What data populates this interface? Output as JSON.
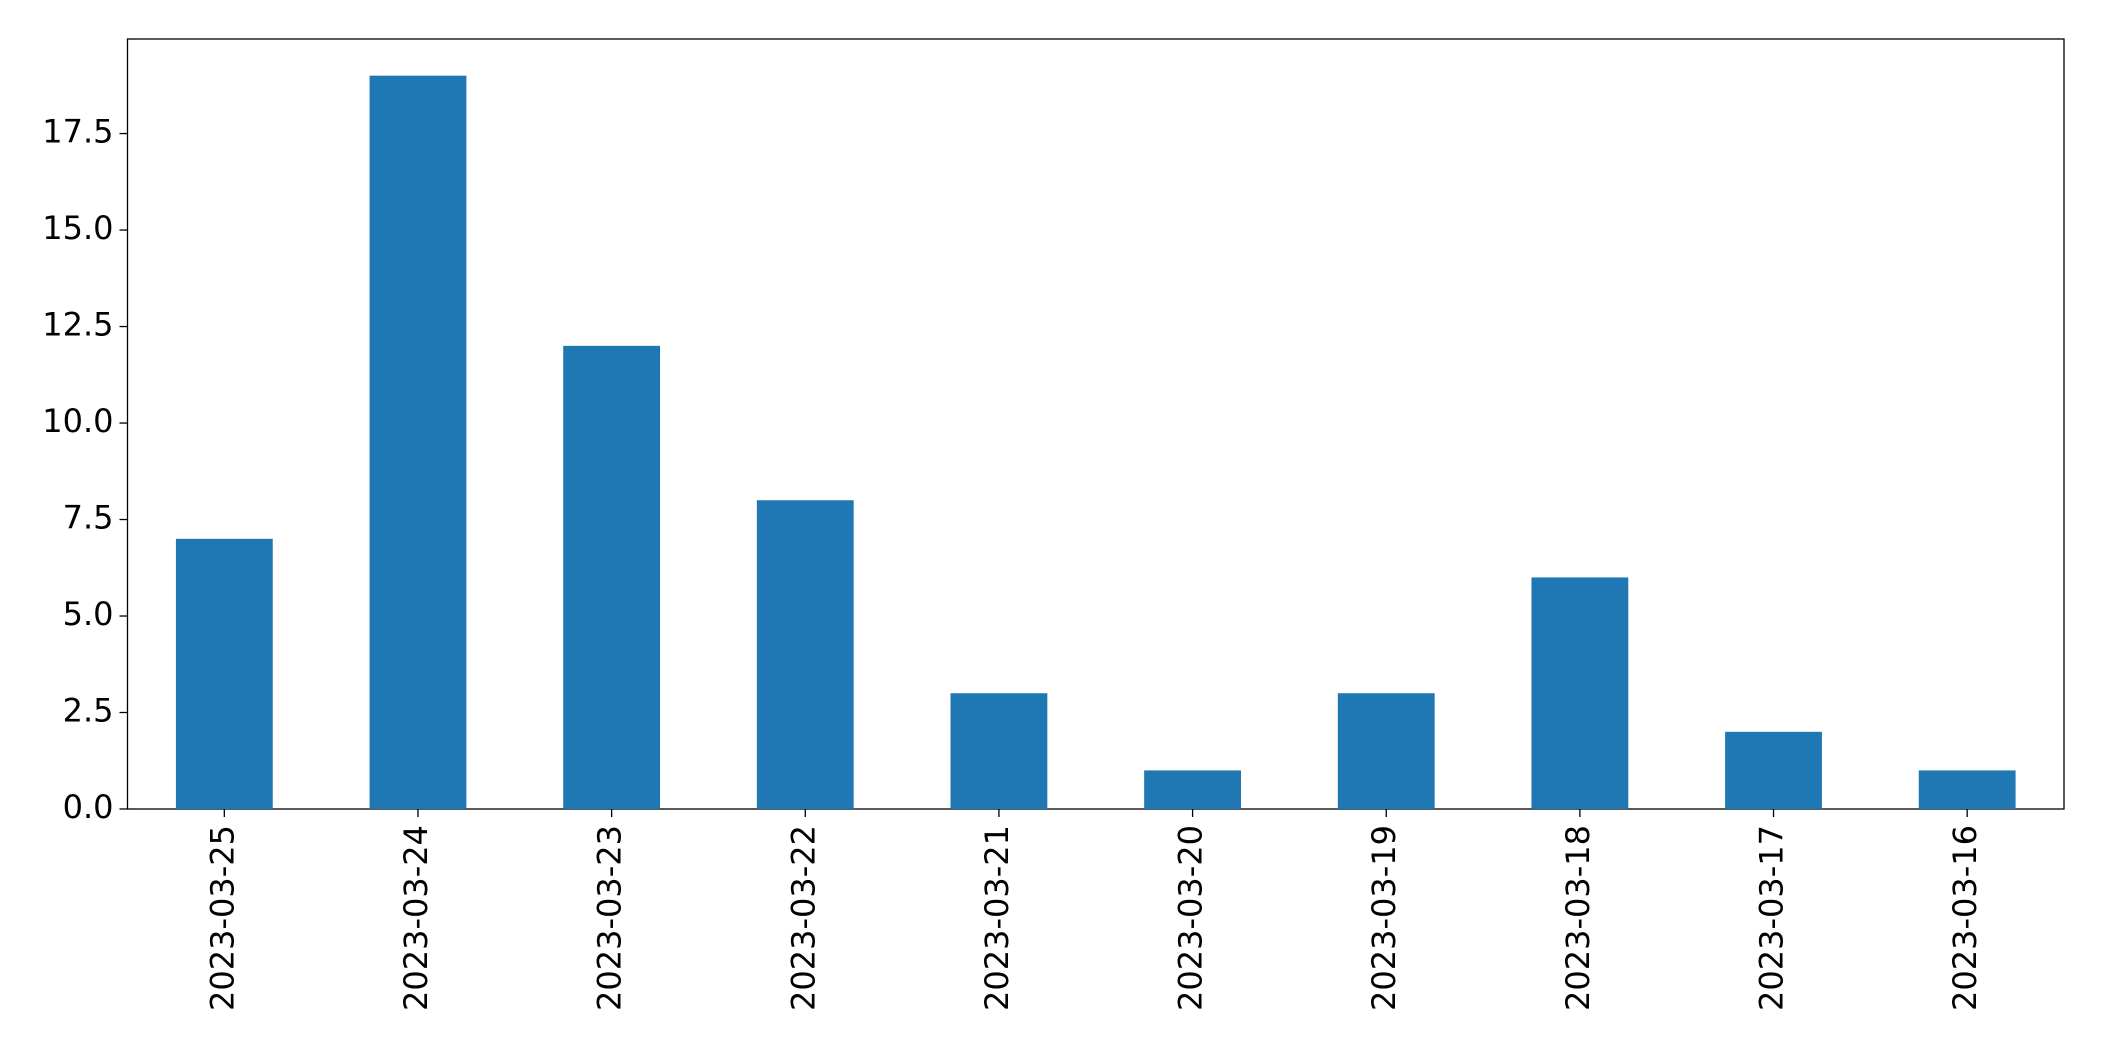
{
  "chart_data": {
    "type": "bar",
    "categories": [
      "2023-03-25",
      "2023-03-24",
      "2023-03-23",
      "2023-03-22",
      "2023-03-21",
      "2023-03-20",
      "2023-03-19",
      "2023-03-18",
      "2023-03-17",
      "2023-03-16"
    ],
    "values": [
      7,
      19,
      12,
      8,
      3,
      1,
      3,
      6,
      2,
      1
    ],
    "color": "#1f77b4",
    "ylim": [
      0,
      19.95
    ],
    "yticks": [
      {
        "value": 0,
        "label": "0.0"
      },
      2.5,
      {
        "value": 5,
        "label": "5.0"
      },
      7.5,
      {
        "value": 10,
        "label": "10.0"
      },
      12.5,
      {
        "value": 15,
        "label": "15.0"
      },
      17.5
    ],
    "grid": false
  }
}
